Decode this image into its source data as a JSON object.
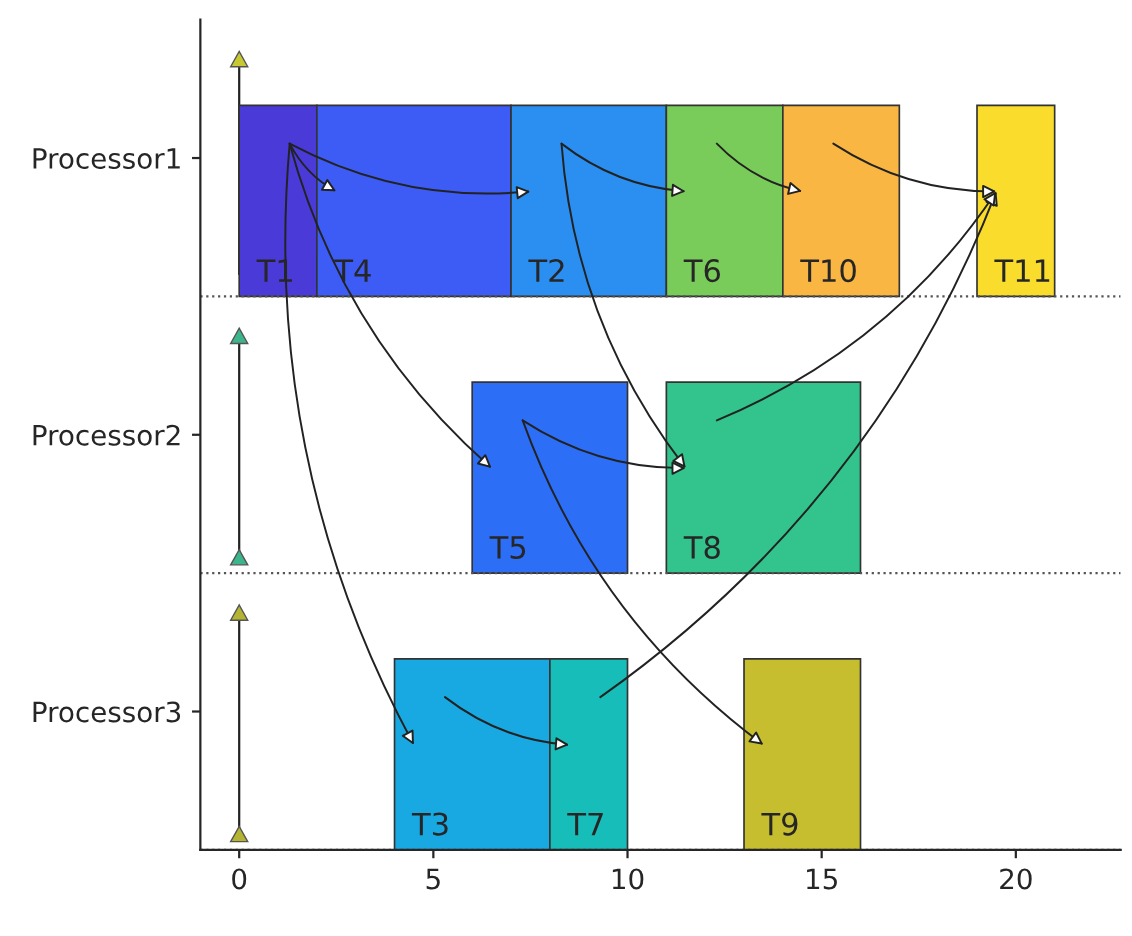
{
  "chart_data": {
    "type": "bar",
    "orientation": "horizontal",
    "categories": [
      "Processor1",
      "Processor2",
      "Processor3"
    ],
    "series": [
      {
        "name": "T1",
        "color": "#4a3ad8",
        "values": [
          2,
          null,
          null
        ],
        "base": [
          0,
          null,
          null
        ]
      },
      {
        "name": "T4",
        "color": "#3d5cf5",
        "values": [
          5,
          null,
          null
        ],
        "base": [
          2,
          null,
          null
        ]
      },
      {
        "name": "T2",
        "color": "#2a8ff0",
        "values": [
          4,
          null,
          null
        ],
        "base": [
          7,
          null,
          null
        ]
      },
      {
        "name": "T6",
        "color": "#79cc5a",
        "values": [
          3,
          null,
          null
        ],
        "base": [
          11,
          null,
          null
        ]
      },
      {
        "name": "T10",
        "color": "#f9b642",
        "values": [
          3,
          null,
          null
        ],
        "base": [
          14,
          null,
          null
        ]
      },
      {
        "name": "T11",
        "color": "#f9dc2c",
        "values": [
          2,
          null,
          null
        ],
        "base": [
          19,
          null,
          null
        ]
      },
      {
        "name": "T5",
        "color": "#2d6ef7",
        "values": [
          null,
          4,
          null
        ],
        "base": [
          null,
          6,
          null
        ]
      },
      {
        "name": "T8",
        "color": "#32c48c",
        "values": [
          null,
          5,
          null
        ],
        "base": [
          null,
          11,
          null
        ]
      },
      {
        "name": "T3",
        "color": "#18a9e2",
        "values": [
          null,
          null,
          4
        ],
        "base": [
          null,
          null,
          4
        ]
      },
      {
        "name": "T7",
        "color": "#17bdb8",
        "values": [
          null,
          null,
          2
        ],
        "base": [
          null,
          null,
          8
        ]
      },
      {
        "name": "T9",
        "color": "#c6be2e",
        "values": [
          null,
          null,
          3
        ],
        "base": [
          null,
          null,
          13
        ]
      }
    ],
    "xlim": [
      -1,
      22.7
    ],
    "xticks": [
      0,
      5,
      10,
      15,
      20
    ],
    "grid": false,
    "legend": false
  }
}
